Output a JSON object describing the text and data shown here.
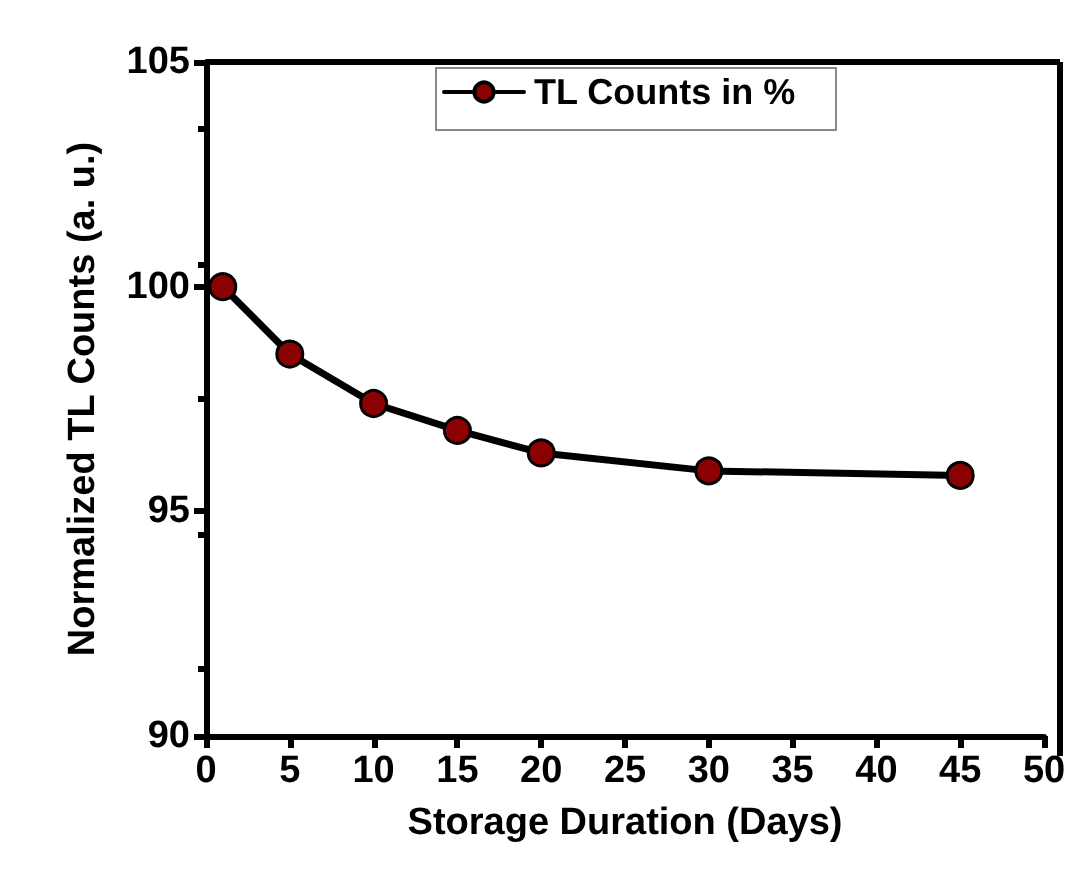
{
  "chart_data": {
    "type": "line",
    "xlabel": "Storage Duration (Days)",
    "ylabel": "Normalized TL Counts (a. u.)",
    "x": [
      1,
      5,
      10,
      15,
      20,
      30,
      45
    ],
    "series": [
      {
        "name": "TL Counts in %",
        "color": "#8b0000",
        "values": [
          100,
          98.5,
          97.4,
          96.8,
          96.3,
          95.9,
          95.8
        ]
      }
    ],
    "xlim": [
      0,
      50
    ],
    "xticks": [
      0,
      5,
      10,
      15,
      20,
      25,
      30,
      35,
      40,
      45,
      50
    ],
    "ylim": [
      90,
      105
    ],
    "yticks": [
      90,
      95,
      100,
      105
    ],
    "grid": false,
    "legend": "top",
    "marker": "circle",
    "line_style": "solid"
  }
}
